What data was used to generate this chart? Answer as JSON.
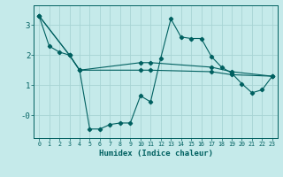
{
  "xlabel": "Humidex (Indice chaleur)",
  "bg_color": "#c5eaea",
  "grid_color": "#a8d4d4",
  "line_color": "#006060",
  "xlim": [
    -0.5,
    23.5
  ],
  "ylim": [
    -0.75,
    3.65
  ],
  "yticks": [
    0,
    1,
    2,
    3
  ],
  "ytick_labels": [
    "-0",
    "1",
    "2",
    "3"
  ],
  "xticks": [
    0,
    1,
    2,
    3,
    4,
    5,
    6,
    7,
    8,
    9,
    10,
    11,
    12,
    13,
    14,
    15,
    16,
    17,
    18,
    19,
    20,
    21,
    22,
    23
  ],
  "line1_x": [
    0,
    1,
    2,
    3,
    4,
    5,
    6,
    7,
    8,
    9,
    10,
    11,
    12,
    13,
    14,
    15,
    16,
    17,
    18,
    19,
    20,
    21,
    22,
    23
  ],
  "line1_y": [
    3.3,
    2.3,
    2.1,
    2.0,
    1.5,
    -0.45,
    -0.45,
    -0.3,
    -0.25,
    -0.25,
    0.65,
    0.45,
    1.9,
    3.2,
    2.6,
    2.55,
    2.55,
    1.95,
    1.6,
    1.4,
    1.05,
    0.75,
    0.85,
    1.3
  ],
  "line2_x": [
    0,
    3,
    4,
    10,
    11,
    17,
    19,
    23
  ],
  "line2_y": [
    3.3,
    2.0,
    1.5,
    1.5,
    1.5,
    1.45,
    1.35,
    1.3
  ],
  "line3_x": [
    0,
    3,
    4,
    10,
    11,
    17,
    19,
    23
  ],
  "line3_y": [
    3.3,
    2.0,
    1.5,
    1.75,
    1.75,
    1.6,
    1.45,
    1.3
  ],
  "font_family": "monospace"
}
